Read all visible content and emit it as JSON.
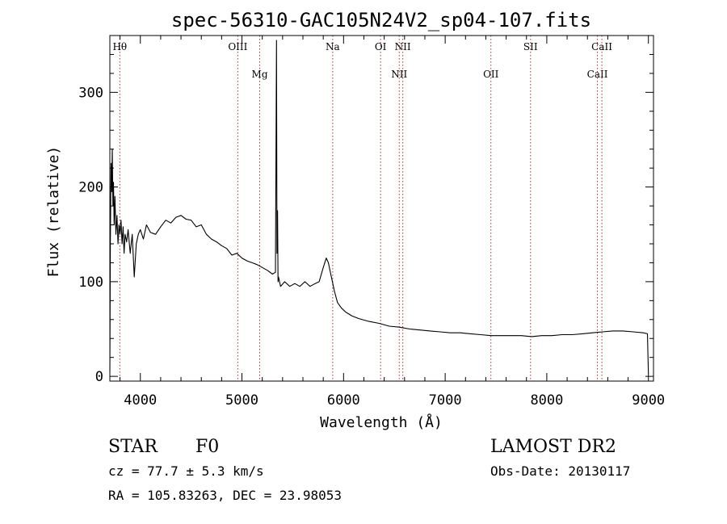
{
  "chart_data": {
    "type": "line",
    "title": "spec-56310-GAC105N24V2_sp04-107.fits",
    "xlabel": "Wavelength (Å)",
    "ylabel": "Flux (relative)",
    "xlim": [
      3700,
      9050
    ],
    "ylim": [
      -5,
      360
    ],
    "x_ticks": [
      4000,
      5000,
      6000,
      7000,
      8000,
      9000
    ],
    "x_minor_step": 200,
    "y_ticks": [
      0,
      100,
      200,
      300
    ],
    "y_minor_step": 20,
    "grid": false,
    "series": [
      {
        "x": [
          3700,
          3705,
          3712,
          3718,
          3724,
          3730,
          3736,
          3742,
          3750,
          3760,
          3770,
          3780,
          3790,
          3800,
          3810,
          3820,
          3830,
          3840,
          3850,
          3865,
          3880,
          3900,
          3920,
          3940,
          3960,
          3980,
          4000,
          4030,
          4060,
          4100,
          4150,
          4200,
          4250,
          4300,
          4350,
          4400,
          4450,
          4500,
          4550,
          4600,
          4650,
          4700,
          4750,
          4800,
          4850,
          4900,
          4950,
          5000,
          5050,
          5100,
          5150,
          5200,
          5250,
          5300,
          5330,
          5340,
          5345,
          5350,
          5355,
          5360,
          5380,
          5420,
          5470,
          5520,
          5570,
          5620,
          5670,
          5720,
          5760,
          5800,
          5830,
          5850,
          5870,
          5890,
          5910,
          5940,
          5980,
          6020,
          6080,
          6150,
          6250,
          6350,
          6450,
          6550,
          6650,
          6750,
          6850,
          6950,
          7050,
          7150,
          7250,
          7350,
          7450,
          7550,
          7650,
          7750,
          7850,
          7950,
          8050,
          8150,
          8250,
          8350,
          8450,
          8550,
          8650,
          8750,
          8850,
          8950,
          8990,
          9000
        ],
        "y": [
          5,
          140,
          225,
          195,
          240,
          180,
          205,
          160,
          190,
          150,
          170,
          140,
          160,
          150,
          165,
          140,
          158,
          130,
          150,
          142,
          155,
          130,
          150,
          105,
          140,
          150,
          155,
          145,
          160,
          152,
          150,
          158,
          165,
          162,
          168,
          170,
          166,
          165,
          158,
          160,
          150,
          145,
          142,
          138,
          135,
          128,
          130,
          125,
          122,
          120,
          118,
          115,
          112,
          108,
          110,
          355,
          130,
          175,
          100,
          105,
          95,
          100,
          95,
          98,
          95,
          100,
          95,
          98,
          100,
          115,
          125,
          120,
          110,
          100,
          90,
          78,
          72,
          68,
          64,
          61,
          58,
          56,
          53,
          52,
          50,
          49,
          48,
          47,
          46,
          46,
          45,
          44,
          43,
          43,
          43,
          43,
          42,
          43,
          43,
          44,
          44,
          45,
          46,
          47,
          48,
          48,
          47,
          46,
          45,
          3
        ]
      }
    ],
    "spectral_lines": [
      {
        "label": "Hθ",
        "x": 3798,
        "row": 0
      },
      {
        "label": "OIII",
        "x": 4959,
        "row": 0
      },
      {
        "label": "Mg",
        "x": 5175,
        "row": 1
      },
      {
        "label": "Na",
        "x": 5893,
        "row": 0
      },
      {
        "label": "OI",
        "x": 6364,
        "row": 0
      },
      {
        "label": "NII",
        "x": 6548,
        "row": 1
      },
      {
        "label": "NII",
        "x": 6583,
        "row": 0
      },
      {
        "label": "OII",
        "x": 7450,
        "row": 1
      },
      {
        "label": "SII",
        "x": 7840,
        "row": 0
      },
      {
        "label": "CaII",
        "x": 8498,
        "row": 1
      },
      {
        "label": "CaII",
        "x": 8542,
        "row": 0
      }
    ]
  },
  "info": {
    "class": "STAR",
    "subclass": "F0",
    "survey": "LAMOST DR2",
    "cz": "cz = 77.7 ± 5.3 km/s",
    "obs_date": "Obs-Date: 20130117",
    "radec": "RA = 105.83263, DEC =  23.98053"
  }
}
